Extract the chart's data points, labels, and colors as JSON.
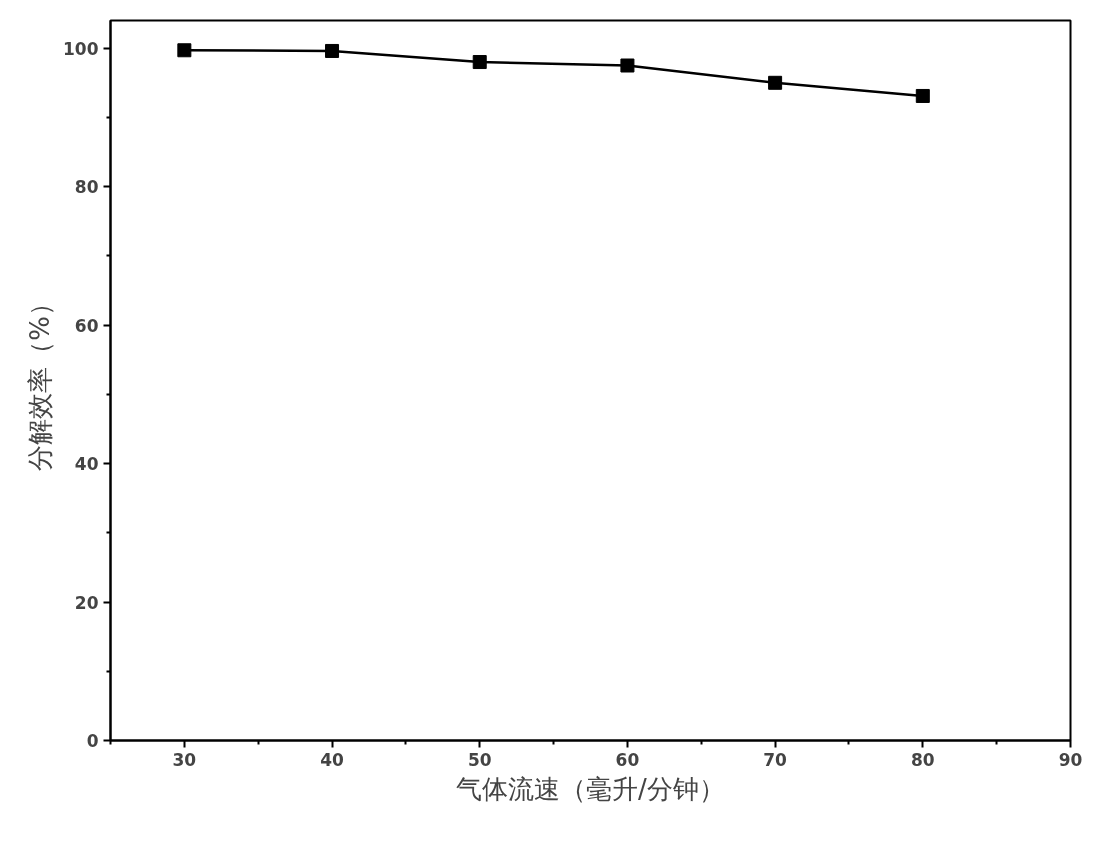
{
  "chart_data": {
    "type": "line",
    "xlabel": "气体流速（毫升/分钟）",
    "ylabel": "分解效率（%）",
    "x": [
      30,
      40,
      50,
      60,
      70,
      80
    ],
    "series": [
      {
        "color": "#000000",
        "values": [
          99.7,
          99.6,
          98.0,
          97.5,
          95.0,
          93.1
        ]
      }
    ],
    "xlim": [
      25,
      90
    ],
    "ylim": [
      0,
      104
    ],
    "xticks": [
      30,
      40,
      50,
      60,
      70,
      80,
      90
    ],
    "yticks": [
      0,
      20,
      40,
      60,
      80,
      100
    ],
    "marker": "square",
    "line_style": "solid",
    "grid": false
  }
}
